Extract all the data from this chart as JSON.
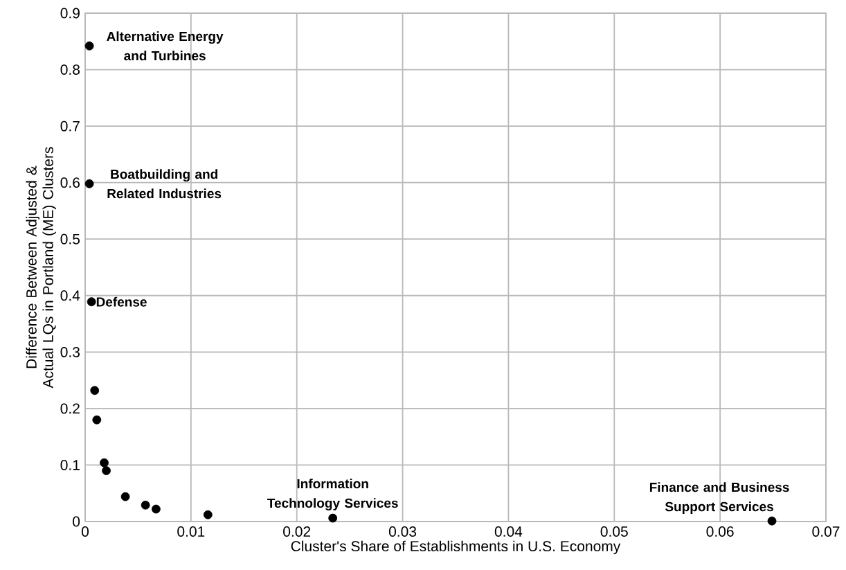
{
  "chart_data": {
    "type": "scatter",
    "xlabel": "Cluster's Share of Establishments in U.S. Economy",
    "ylabel": "Difference Between Adjusted & Actual LQs in Portland (ME) Clusters",
    "x": [
      0.0004,
      0.0004,
      0.0006,
      0.0009,
      0.0011,
      0.0018,
      0.002,
      0.0038,
      0.0057,
      0.0067,
      0.0116,
      0.0234,
      0.0649
    ],
    "values": [
      0.842,
      0.598,
      0.389,
      0.232,
      0.18,
      0.104,
      0.09,
      0.044,
      0.029,
      0.022,
      0.012,
      0.006,
      0.001
    ],
    "color": "#000000",
    "marker": "circle",
    "grid": true,
    "xlim": [
      0,
      0.07
    ],
    "xticks": [
      0,
      0.01,
      0.02,
      0.03,
      0.04,
      0.05,
      0.06,
      0.07
    ],
    "ylim": [
      0,
      0.9
    ],
    "yticks": [
      0,
      0.1,
      0.2,
      0.3,
      0.4,
      0.5,
      0.6,
      0.7,
      0.8,
      0.9
    ],
    "annotations": [
      {
        "text": "Alternative Energy and Turbines",
        "x": 0.0004,
        "y": 0.842
      },
      {
        "text": "Boatbuilding and Related Industries",
        "x": 0.0004,
        "y": 0.598
      },
      {
        "text": "Defense",
        "x": 0.0006,
        "y": 0.389
      },
      {
        "text": "Information Technology Services",
        "x": 0.0234,
        "y": 0.006
      },
      {
        "text": "Finance and Business Support Services",
        "x": 0.0649,
        "y": 0.001
      }
    ]
  }
}
